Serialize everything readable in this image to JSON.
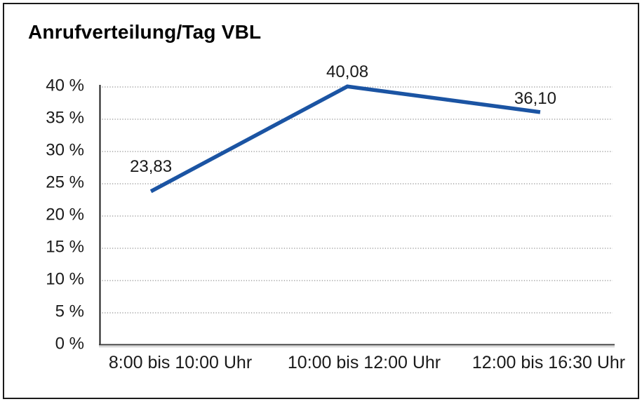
{
  "chart_data": {
    "type": "line",
    "title": "Anrufverteilung/Tag VBL",
    "categories": [
      "8:00 bis 10:00 Uhr",
      "10:00 bis 12:00 Uhr",
      "12:00 bis 16:30 Uhr"
    ],
    "series": [
      {
        "name": "Anrufverteilung/Tag VBL",
        "values": [
          23.83,
          40.08,
          36.1
        ]
      }
    ],
    "value_labels": [
      "23,83",
      "40,08",
      "36,10"
    ],
    "xlabel": "",
    "ylabel": "",
    "ylim": [
      0,
      40
    ],
    "y_tick_step": 5,
    "y_tick_labels": [
      "0 %",
      "5 %",
      "10 %",
      "15 %",
      "20 %",
      "25 %",
      "30 %",
      "35 %",
      "40 %"
    ],
    "grid": "horizontal-dotted",
    "legend": "none",
    "line_color": "#1b54a3",
    "grid_color": "#8c8c8c",
    "axis_color": "#1a1a1a",
    "text_color": "#1a1a1a"
  }
}
